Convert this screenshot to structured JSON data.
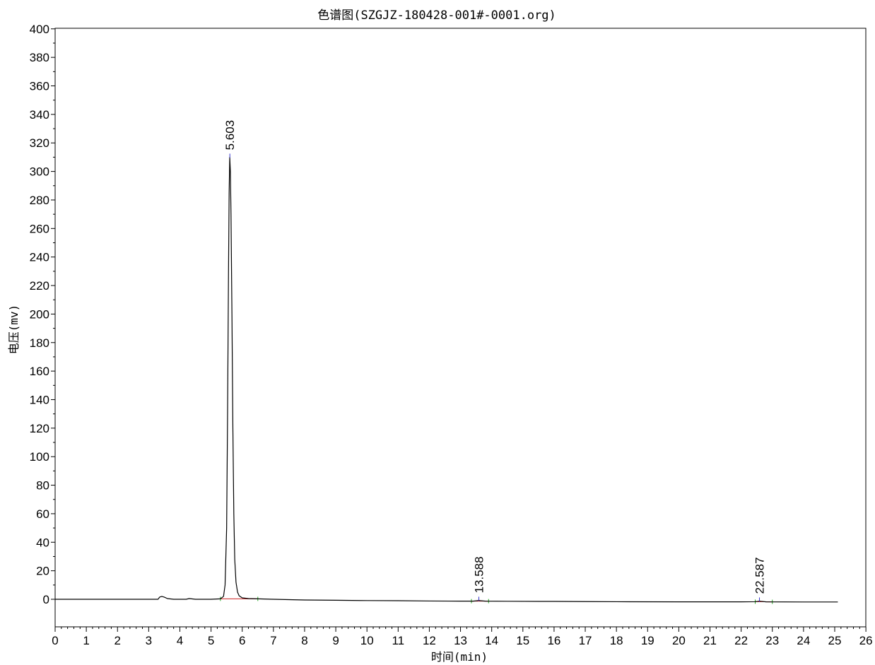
{
  "chart_data": {
    "type": "line",
    "title": "色谱图(SZGJZ-180428-001#-0001.org)",
    "xlabel": "时间(min)",
    "ylabel": "电压(mv)",
    "xlim": [
      0,
      26
    ],
    "ylim": [
      -20,
      400
    ],
    "x_ticks": [
      0,
      1,
      2,
      3,
      4,
      5,
      6,
      7,
      8,
      9,
      10,
      11,
      12,
      13,
      14,
      15,
      16,
      17,
      18,
      19,
      20,
      21,
      22,
      23,
      24,
      25,
      26
    ],
    "y_ticks": [
      0,
      20,
      40,
      60,
      80,
      100,
      120,
      140,
      160,
      180,
      200,
      220,
      240,
      260,
      280,
      300,
      320,
      340,
      360,
      380,
      400
    ],
    "grid": false,
    "series": [
      {
        "color": "#000000",
        "x": [
          0,
          1,
          2,
          3,
          3.3,
          3.35,
          3.42,
          3.5,
          3.6,
          3.8,
          4.0,
          4.2,
          4.3,
          4.5,
          5.0,
          5.3,
          5.4,
          5.45,
          5.5,
          5.53,
          5.56,
          5.58,
          5.6,
          5.62,
          5.64,
          5.67,
          5.7,
          5.73,
          5.76,
          5.8,
          5.85,
          5.9,
          6.0,
          6.2,
          6.5,
          7.0,
          8.0,
          9.0,
          10.0,
          11.0,
          12.0,
          13.0,
          13.4,
          13.55,
          13.588,
          13.62,
          13.8,
          14.5,
          16.0,
          17.0,
          18.0,
          20.0,
          22.0,
          22.45,
          22.56,
          22.587,
          22.62,
          22.8,
          24.0,
          25.0,
          25.1
        ],
        "y": [
          0,
          0,
          0,
          0,
          0,
          1.5,
          2,
          1.5,
          0.5,
          0,
          0,
          0,
          0.5,
          0,
          0,
          0.3,
          2,
          10,
          50,
          130,
          230,
          285,
          310,
          300,
          270,
          200,
          120,
          60,
          28,
          12,
          5,
          2.5,
          1,
          0.5,
          0.3,
          0,
          -0.5,
          -0.7,
          -0.9,
          -1,
          -1.2,
          -1.3,
          -1.3,
          -1,
          -0.7,
          -1,
          -1.3,
          -1.4,
          -1.5,
          -1.6,
          -1.7,
          -1.8,
          -1.8,
          -1.7,
          -1.4,
          -1.2,
          -1.4,
          -1.8,
          -1.9,
          -1.9,
          -1.9
        ]
      }
    ],
    "peaks": [
      {
        "rt": 5.603,
        "label": "5.603",
        "height": 310
      },
      {
        "rt": 13.588,
        "label": "13.588",
        "height": -0.7
      },
      {
        "rt": 22.587,
        "label": "22.587",
        "height": -1.2
      }
    ],
    "baselines": [
      {
        "x": [
          5.3,
          6.5
        ],
        "y": [
          0.3,
          0.3
        ]
      },
      {
        "x": [
          13.35,
          13.9
        ],
        "y": [
          -1.3,
          -1.3
        ]
      },
      {
        "x": [
          22.45,
          23.0
        ],
        "y": [
          -1.7,
          -1.8
        ]
      }
    ],
    "colors": {
      "trace": "#000000",
      "peak_marker": "#3333cc",
      "baseline": "#cc2222",
      "integration_marker": "#22aa22",
      "axis": "#000000"
    }
  }
}
